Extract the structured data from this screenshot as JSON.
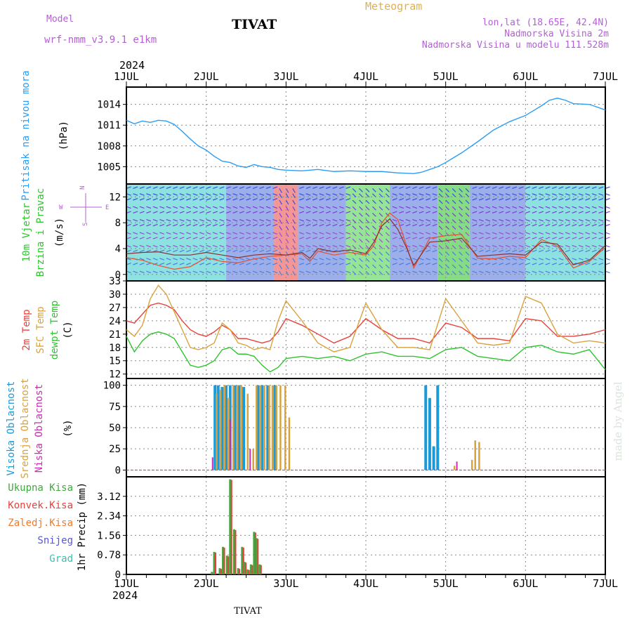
{
  "header": {
    "model_label": "Model",
    "model_name": "wrf-nmm_v3.9.1 e1km",
    "station": "TIVAT",
    "product": "Meteogram",
    "lonlat": "lon,lat (18.65E, 42.4N)",
    "elevation": "Nadmorska Visina 2m",
    "model_elevation": "Nadmorska Visina u modelu 111.528m"
  },
  "footer": {
    "station": "TIVAT",
    "watermark": "made by Angel"
  },
  "colors": {
    "pressure": "#2a9df4",
    "t2m": "#e8413b",
    "sfc": "#d9a23c",
    "dewpt": "#2ec42e",
    "high_cloud": "#1a9ad8",
    "mid_cloud": "#d9a23c",
    "low_cloud": "#cc2db0",
    "total_precip": "#3fa83f",
    "conv_precip": "#e8413b",
    "strat_precip": "#f07a30",
    "snow": "#5555dd",
    "graupel": "#38c0b0",
    "title": "#b45fd6",
    "product": "#e0b050"
  },
  "chart_data": [
    {
      "type": "line",
      "panel": "pressure",
      "ylabel": "Pritisak na nivou mora",
      "unit": "(hPa)",
      "ylim": [
        1002.5,
        1016.5
      ],
      "yticks": [
        1005,
        1008,
        1011,
        1014
      ],
      "x": [
        0.0,
        0.1,
        0.2,
        0.3,
        0.4,
        0.5,
        0.6,
        0.7,
        0.8,
        0.9,
        1.0,
        1.1,
        1.2,
        1.3,
        1.4,
        1.5,
        1.6,
        1.7,
        1.8,
        1.9,
        2.0,
        2.2,
        2.4,
        2.6,
        2.8,
        3.0,
        3.2,
        3.4,
        3.6,
        3.7,
        3.8,
        3.9,
        4.0,
        4.2,
        4.4,
        4.6,
        4.8,
        5.0,
        5.2,
        5.3,
        5.4,
        5.5,
        5.6,
        5.8,
        6.0
      ],
      "series": [
        {
          "values": [
            1011.7,
            1011.2,
            1011.6,
            1011.4,
            1011.7,
            1011.6,
            1011.1,
            1010.1,
            1009.0,
            1008.0,
            1007.4,
            1006.5,
            1005.8,
            1005.6,
            1005.1,
            1004.9,
            1005.3,
            1005.0,
            1004.9,
            1004.6,
            1004.5,
            1004.4,
            1004.6,
            1004.3,
            1004.4,
            1004.3,
            1004.3,
            1004.1,
            1004.0,
            1004.2,
            1004.6,
            1005.0,
            1005.6,
            1007.0,
            1008.6,
            1010.3,
            1011.5,
            1012.4,
            1013.8,
            1014.6,
            1014.9,
            1014.6,
            1014.1,
            1014.0,
            1013.2
          ]
        }
      ]
    },
    {
      "type": "line",
      "panel": "wind",
      "ylabel_1": "10m Vjetar",
      "ylabel_2": "Brzina i Pravac",
      "unit": "(m/s)",
      "ylim": [
        -1,
        14
      ],
      "yticks": [
        0,
        4,
        8,
        12
      ],
      "compass": {
        "n": "N",
        "w": "W",
        "e": "E",
        "s": "S"
      },
      "x": [
        0.0,
        0.2,
        0.4,
        0.6,
        0.8,
        1.0,
        1.2,
        1.4,
        1.6,
        1.8,
        2.0,
        2.2,
        2.3,
        2.4,
        2.6,
        2.8,
        3.0,
        3.1,
        3.2,
        3.3,
        3.4,
        3.5,
        3.6,
        3.8,
        4.0,
        4.2,
        4.4,
        4.6,
        4.8,
        5.0,
        5.2,
        5.4,
        5.6,
        5.8,
        6.0
      ],
      "series": [
        {
          "name": "speed",
          "values": [
            3.2,
            3.4,
            3.5,
            3.0,
            3.0,
            3.4,
            3.0,
            2.6,
            3.0,
            3.2,
            3.0,
            3.4,
            2.5,
            4.0,
            3.5,
            3.8,
            3.2,
            5.0,
            7.5,
            8.6,
            7.0,
            4.4,
            1.4,
            5.0,
            5.2,
            5.6,
            2.8,
            3.0,
            3.2,
            3.0,
            5.0,
            4.7,
            1.5,
            2.2,
            4.5
          ]
        },
        {
          "name": "gust",
          "values": [
            2.6,
            2.2,
            1.4,
            0.8,
            1.2,
            2.6,
            2.0,
            1.8,
            2.4,
            2.8,
            3.0,
            3.2,
            2.0,
            3.6,
            3.0,
            3.4,
            3.0,
            4.5,
            8.0,
            9.5,
            8.5,
            4.8,
            1.0,
            5.6,
            6.0,
            6.2,
            2.5,
            2.4,
            2.8,
            2.6,
            5.4,
            4.4,
            1.0,
            2.0,
            4.2
          ]
        }
      ]
    },
    {
      "type": "line",
      "panel": "temperature",
      "ylabel_1": "2m Temp",
      "ylabel_2": "SFC Temp",
      "ylabel_3": "dewpt Temp",
      "unit": "(C)",
      "ylim": [
        11,
        33
      ],
      "yticks": [
        12,
        15,
        18,
        21,
        24,
        27,
        30,
        33
      ],
      "x": [
        0.0,
        0.1,
        0.2,
        0.3,
        0.4,
        0.5,
        0.6,
        0.7,
        0.8,
        0.9,
        1.0,
        1.1,
        1.2,
        1.3,
        1.4,
        1.5,
        1.6,
        1.7,
        1.8,
        1.9,
        2.0,
        2.2,
        2.4,
        2.6,
        2.8,
        3.0,
        3.2,
        3.4,
        3.6,
        3.8,
        4.0,
        4.2,
        4.4,
        4.6,
        4.8,
        5.0,
        5.2,
        5.4,
        5.6,
        5.8,
        6.0
      ],
      "series": [
        {
          "name": "2m Temp",
          "values": [
            24.0,
            23.5,
            25.5,
            27.5,
            28.0,
            27.5,
            26.5,
            24.0,
            22.0,
            21.0,
            20.5,
            21.5,
            23.0,
            22.0,
            20.0,
            20.0,
            19.5,
            19.0,
            19.5,
            21.5,
            24.5,
            23.0,
            21.0,
            19.0,
            20.5,
            24.5,
            22.0,
            20.0,
            20.0,
            19.0,
            23.5,
            22.5,
            20.0,
            20.0,
            19.5,
            24.5,
            24.0,
            20.5,
            20.5,
            21.0,
            22.0
          ]
        },
        {
          "name": "SFC Temp",
          "values": [
            22.0,
            20.5,
            23.0,
            29.0,
            32.0,
            30.0,
            26.0,
            22.0,
            18.0,
            17.5,
            18.0,
            19.0,
            23.5,
            22.0,
            19.0,
            18.5,
            17.5,
            18.0,
            17.5,
            24.0,
            28.5,
            24.0,
            19.0,
            17.0,
            18.0,
            28.0,
            22.0,
            18.0,
            18.0,
            17.5,
            29.0,
            24.0,
            19.0,
            18.5,
            19.0,
            29.5,
            28.0,
            21.0,
            19.0,
            19.5,
            19.0
          ]
        },
        {
          "name": "dewpt Temp",
          "values": [
            20.5,
            17.0,
            19.5,
            21.0,
            21.5,
            21.0,
            20.0,
            17.0,
            14.0,
            13.5,
            14.0,
            15.0,
            17.5,
            18.0,
            16.5,
            16.5,
            16.0,
            14.0,
            12.5,
            13.5,
            15.5,
            16.0,
            15.5,
            16.0,
            15.0,
            16.5,
            17.0,
            16.0,
            16.0,
            15.5,
            17.5,
            18.0,
            16.0,
            15.5,
            15.0,
            18.0,
            18.5,
            17.0,
            16.5,
            17.5,
            13.0
          ]
        }
      ]
    },
    {
      "type": "bar",
      "panel": "cloud",
      "ylabel_1": "Visoka Oblacnost",
      "ylabel_2": "Srednja Oblacnost",
      "ylabel_3": "Niska Oblacnost",
      "unit": "(%)",
      "ylim": [
        -8,
        108
      ],
      "yticks": [
        0,
        25,
        50,
        75,
        100
      ],
      "series": [
        {
          "name": "Visoka Oblacnost",
          "x": [
            1.11,
            1.15,
            1.2,
            1.25,
            1.3,
            1.36,
            1.41,
            1.47,
            1.65,
            1.7,
            1.77,
            1.86,
            3.75,
            3.8,
            3.85,
            3.9
          ],
          "values": [
            100,
            100,
            98,
            100,
            100,
            100,
            100,
            98,
            100,
            100,
            100,
            100,
            100,
            85,
            28,
            100
          ]
        },
        {
          "name": "Srednja Oblacnost",
          "x": [
            1.13,
            1.18,
            1.23,
            1.28,
            1.34,
            1.39,
            1.44,
            1.52,
            1.59,
            1.63,
            1.68,
            1.73,
            1.79,
            1.83,
            1.88,
            1.93,
            1.99,
            2.04,
            4.11,
            4.33,
            4.37,
            4.42
          ],
          "values": [
            90,
            95,
            100,
            85,
            100,
            100,
            100,
            90,
            25,
            100,
            100,
            100,
            100,
            100,
            100,
            100,
            100,
            62,
            5,
            12,
            35,
            33
          ]
        },
        {
          "name": "Niska Oblacnost",
          "x": [
            1.08,
            1.3,
            1.55,
            4.14
          ],
          "values": [
            15,
            60,
            25,
            10
          ]
        }
      ]
    },
    {
      "type": "bar",
      "panel": "precip",
      "ylabel": "1hr Precip (mm)",
      "legend": [
        "Ukupna Kisa",
        "Konvek.Kisa",
        "Zaledj.Kisa",
        "Snijeg",
        "Grad"
      ],
      "ylim": [
        0,
        3.9
      ],
      "yticks": [
        0,
        0.78,
        1.56,
        2.34,
        3.12
      ],
      "x": [
        1.07,
        1.1,
        1.17,
        1.21,
        1.26,
        1.3,
        1.35,
        1.4,
        1.45,
        1.48,
        1.52,
        1.56,
        1.6,
        1.63,
        1.67
      ],
      "values": [
        0.1,
        0.9,
        0.25,
        1.1,
        0.75,
        3.8,
        1.8,
        0.25,
        1.1,
        0.5,
        0.2,
        0.4,
        1.7,
        1.45,
        0.4
      ]
    }
  ],
  "x_axis": {
    "labels": [
      "1JUL",
      "2JUL",
      "3JUL",
      "4JUL",
      "5JUL",
      "6JUL",
      "7JUL"
    ],
    "year": "2024"
  }
}
